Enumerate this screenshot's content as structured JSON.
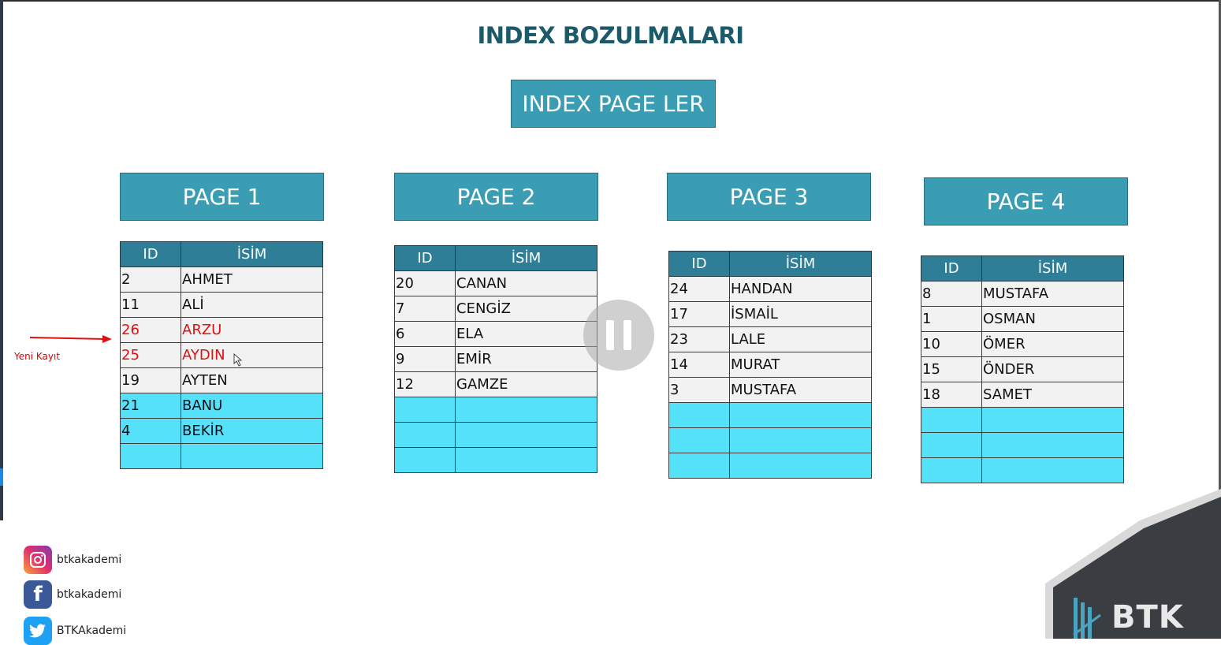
{
  "title": "INDEX BOZULMALARI",
  "index_box": "INDEX PAGE LER",
  "annotation": "Yeni Kayıt",
  "pages": [
    {
      "header": "PAGE 1",
      "columns": [
        "ID",
        "İSİM"
      ],
      "rows": [
        {
          "id": "2",
          "name": "AHMET"
        },
        {
          "id": "11",
          "name": "ALİ"
        },
        {
          "id": "26",
          "name": "ARZU"
        },
        {
          "id": "25",
          "name": "AYDIN"
        },
        {
          "id": "19",
          "name": "AYTEN"
        },
        {
          "id": "21",
          "name": "BANU"
        },
        {
          "id": "4",
          "name": "BEKİR"
        },
        {
          "id": "",
          "name": ""
        }
      ]
    },
    {
      "header": "PAGE 2",
      "columns": [
        "ID",
        "İSİM"
      ],
      "rows": [
        {
          "id": "20",
          "name": "CANAN"
        },
        {
          "id": "7",
          "name": "CENGİZ"
        },
        {
          "id": "6",
          "name": "ELA"
        },
        {
          "id": "9",
          "name": "EMİR"
        },
        {
          "id": "12",
          "name": "GAMZE"
        },
        {
          "id": "",
          "name": ""
        },
        {
          "id": "",
          "name": ""
        },
        {
          "id": "",
          "name": ""
        }
      ]
    },
    {
      "header": "PAGE 3",
      "columns": [
        "ID",
        "İSİM"
      ],
      "rows": [
        {
          "id": "24",
          "name": "HANDAN"
        },
        {
          "id": "17",
          "name": "İSMAİL"
        },
        {
          "id": "23",
          "name": "LALE"
        },
        {
          "id": "14",
          "name": "MURAT"
        },
        {
          "id": "3",
          "name": "MUSTAFA"
        },
        {
          "id": "",
          "name": ""
        },
        {
          "id": "",
          "name": ""
        },
        {
          "id": "",
          "name": ""
        }
      ]
    },
    {
      "header": "PAGE 4",
      "columns": [
        "ID",
        "İSİM"
      ],
      "rows": [
        {
          "id": "8",
          "name": "MUSTAFA"
        },
        {
          "id": "1",
          "name": "OSMAN"
        },
        {
          "id": "10",
          "name": "ÖMER"
        },
        {
          "id": "15",
          "name": "ÖNDER"
        },
        {
          "id": "18",
          "name": "SAMET"
        },
        {
          "id": "",
          "name": ""
        },
        {
          "id": "",
          "name": ""
        },
        {
          "id": "",
          "name": ""
        }
      ]
    }
  ],
  "social": [
    {
      "icon": "instagram-icon",
      "handle": "btkakademi"
    },
    {
      "icon": "facebook-icon",
      "handle": "btkakademi"
    },
    {
      "icon": "twitter-icon",
      "handle": "BTKAkademi"
    }
  ],
  "logo": "BTK",
  "colors": {
    "title": "#1c5a6a",
    "header_fill": "#3a9db3",
    "table_head": "#2d7e96",
    "empty_row": "#56e1fb",
    "new_record": "#e01010"
  }
}
